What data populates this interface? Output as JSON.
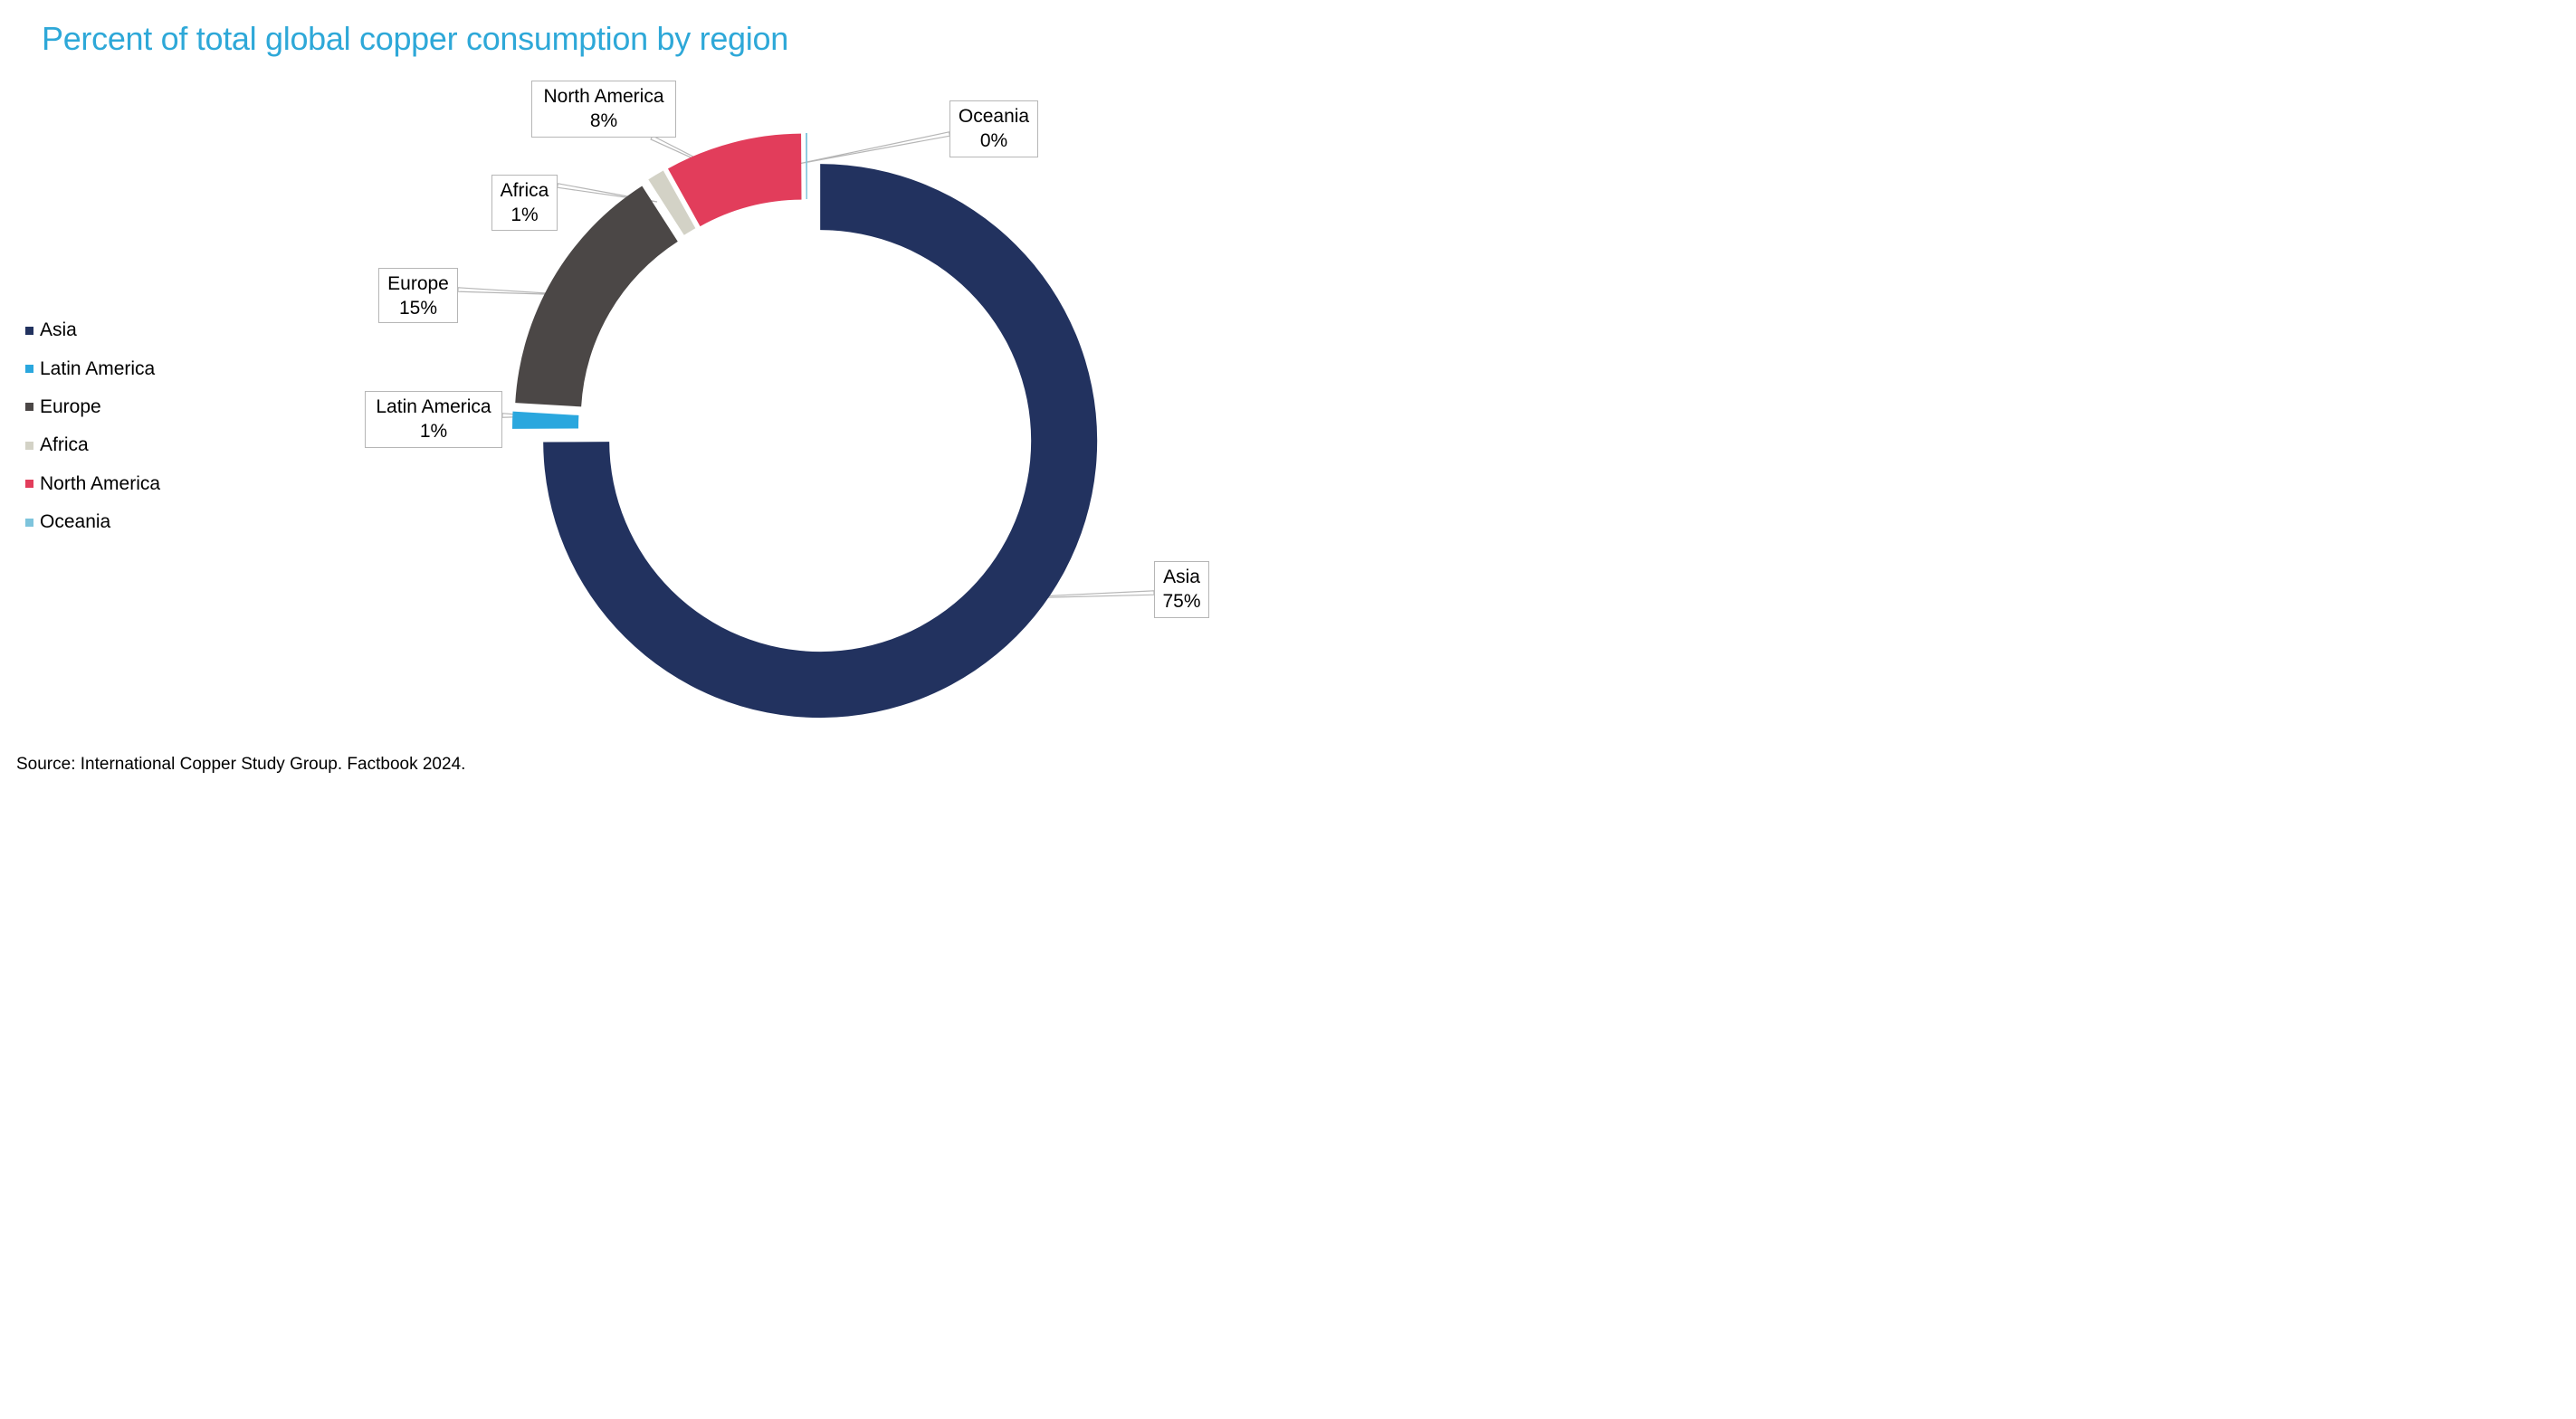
{
  "chart_data": {
    "type": "pie",
    "style": "donut",
    "title": "Percent of total global copper consumption by region",
    "categories": [
      "Asia",
      "Latin America",
      "Europe",
      "Africa",
      "North America",
      "Oceania"
    ],
    "values": [
      75,
      1,
      15,
      1,
      8,
      0
    ],
    "value_labels": [
      "75%",
      "1%",
      "15%",
      "1%",
      "8%",
      "0%"
    ],
    "colors": [
      "#22325f",
      "#2aa7de",
      "#4b4746",
      "#d3d2c6",
      "#e23d5b",
      "#7ec4dc"
    ],
    "legend_position": "left",
    "exploded": true,
    "source": "Source: International Copper Study Group. Factbook 2024."
  }
}
